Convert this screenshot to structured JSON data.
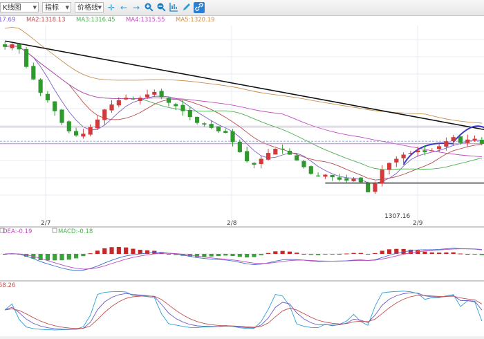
{
  "toolbar": {
    "chart_type": "K线图",
    "indicator": "指标",
    "price_line": "价格线",
    "icons": [
      "crosshair-icon",
      "arrow-left-icon",
      "arrow-right-icon",
      "zoom-in-icon",
      "zoom-out-icon",
      "bar-ruler-icon",
      "pencil-icon",
      "link-icon"
    ]
  },
  "chart_data": {
    "type": "candlestick",
    "legend": [
      {
        "label": "17.69",
        "color": "#7a5ccf"
      },
      {
        "label": "MA2:1318.13",
        "color": "#b84c4c"
      },
      {
        "label": "MA3:1316.45",
        "color": "#4caf50"
      },
      {
        "label": "MA4:1315.55",
        "color": "#c04ac0"
      },
      {
        "label": "MA5:1320.19",
        "color": "#c8904c"
      }
    ],
    "x_tick_labels": [
      "2/7",
      "2/8",
      "2/9"
    ],
    "low_label": "1307.16",
    "close": [
      1324.9,
      1325.2,
      1324.6,
      1322.5,
      1321.0,
      1319.4,
      1318.5,
      1317.2,
      1315.8,
      1314.8,
      1314.3,
      1314.5,
      1315.3,
      1316.2,
      1317.4,
      1318.0,
      1318.5,
      1318.8,
      1318.6,
      1318.8,
      1319.2,
      1319.5,
      1318.9,
      1318.2,
      1317.8,
      1317.2,
      1316.5,
      1315.8,
      1315.6,
      1315.2,
      1314.8,
      1314.6,
      1313.5,
      1312.3,
      1311.2,
      1310.8,
      1311.5,
      1312.2,
      1312.7,
      1312.6,
      1312.0,
      1311.3,
      1310.5,
      1309.7,
      1309.4,
      1309.6,
      1309.3,
      1309.0,
      1308.9,
      1309.1,
      1308.7,
      1307.5,
      1308.5,
      1310.2,
      1311.0,
      1311.5,
      1312.0,
      1312.2,
      1312.5,
      1312.3,
      1312.5,
      1313.0,
      1313.6,
      1314.1,
      1313.4,
      1313.8,
      1313.9,
      1313.3
    ]
  },
  "macd_panel": {
    "legend": [
      {
        "label": "DEA:-0.19",
        "color": "#c04ac0"
      },
      {
        "label": "MACD:-0.18",
        "color": "#4caf50"
      }
    ]
  },
  "kdj_panel": {
    "legend": [
      {
        "label": "58.26",
        "color": "#c0504d"
      }
    ]
  }
}
